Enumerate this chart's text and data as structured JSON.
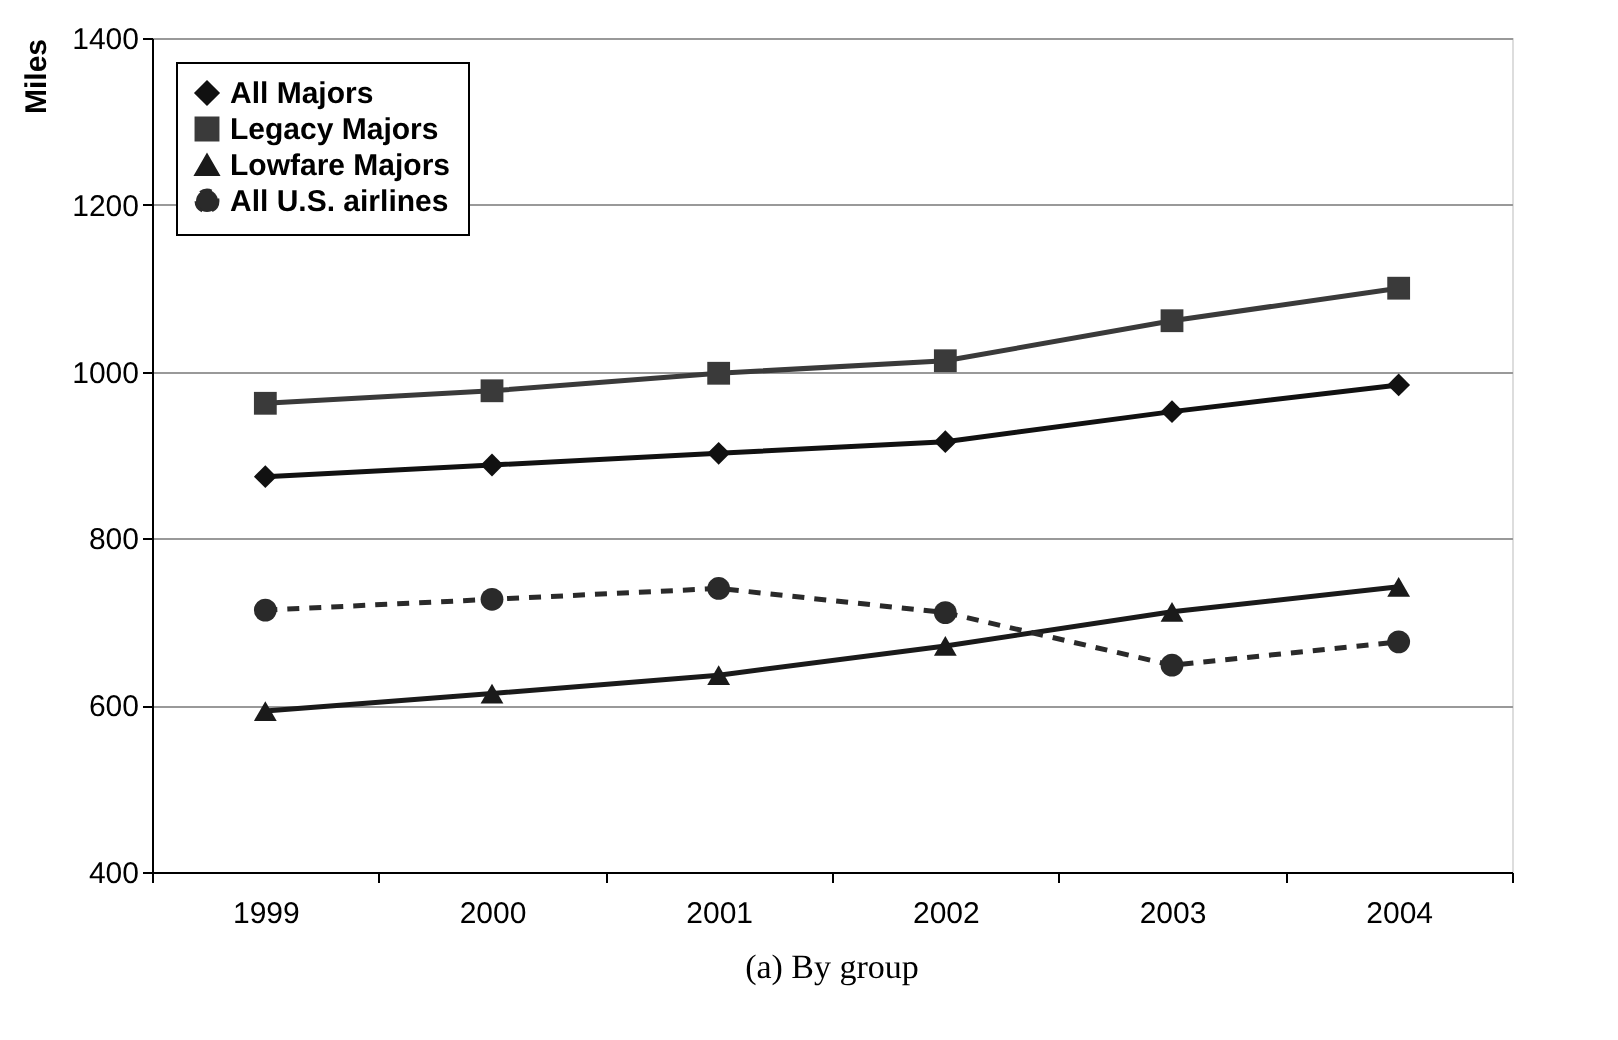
{
  "chart_data": {
    "type": "line",
    "ylabel": "Miles",
    "categories": [
      "1999",
      "2000",
      "2001",
      "2002",
      "2003",
      "2004"
    ],
    "series": [
      {
        "name": "All Majors",
        "color": "#111111",
        "marker": "diamond",
        "line_style": "solid",
        "values": [
          874,
          888,
          902,
          916,
          952,
          984
        ]
      },
      {
        "name": "Legacy Majors",
        "color": "#3a3a3a",
        "marker": "square",
        "line_style": "solid",
        "values": [
          962,
          977,
          998,
          1013,
          1061,
          1100
        ]
      },
      {
        "name": "Lowfare Majors",
        "color": "#1a1a1a",
        "marker": "triangle",
        "line_style": "solid",
        "values": [
          593,
          614,
          636,
          671,
          712,
          742
        ]
      },
      {
        "name": "All U.S. airlines",
        "color": "#2a2a2a",
        "marker": "circle",
        "line_style": "dashed",
        "values": [
          714,
          727,
          740,
          711,
          648,
          676
        ]
      }
    ],
    "ylim": [
      400,
      1400
    ],
    "yticks": [
      400,
      600,
      800,
      1000,
      1200,
      1400
    ],
    "grid": "y",
    "legend": "top left",
    "annotations": [
      "(a) By group"
    ]
  }
}
